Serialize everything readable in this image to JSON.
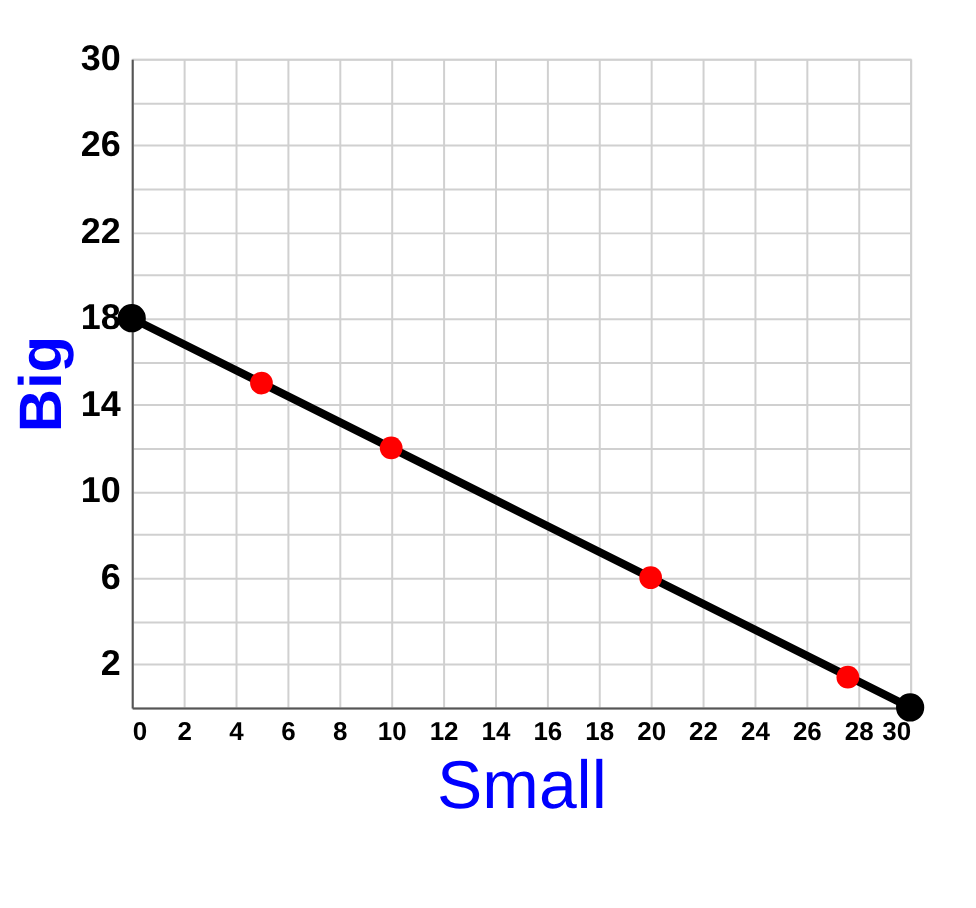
{
  "chart_data": {
    "type": "line",
    "xlabel": "Small",
    "ylabel": "Big",
    "xlim": [
      0,
      30
    ],
    "ylim": [
      0,
      30
    ],
    "xticks": [
      0,
      2,
      4,
      6,
      8,
      10,
      12,
      14,
      16,
      18,
      20,
      22,
      24,
      26,
      28,
      30
    ],
    "yticks": [
      {
        "value": 0,
        "label": null
      },
      2,
      {
        "value": 4,
        "label": null
      },
      6,
      {
        "value": 8,
        "label": null
      },
      10,
      {
        "value": 12,
        "label": null
      },
      14,
      {
        "value": 16,
        "label": null
      },
      18,
      {
        "value": 20,
        "label": null
      },
      22,
      {
        "value": 24,
        "label": null
      },
      26,
      {
        "value": 28,
        "label": null
      },
      30
    ],
    "grid": true,
    "series": [
      {
        "color": "#000000",
        "marker": "circle",
        "x": [
          0,
          30
        ],
        "values": [
          18,
          0
        ]
      },
      {
        "type": "scatter",
        "color": "#ff0000",
        "marker": "circle",
        "x": [
          5,
          10,
          20,
          27.6
        ],
        "values": [
          15,
          12,
          6,
          1.4
        ]
      }
    ]
  }
}
